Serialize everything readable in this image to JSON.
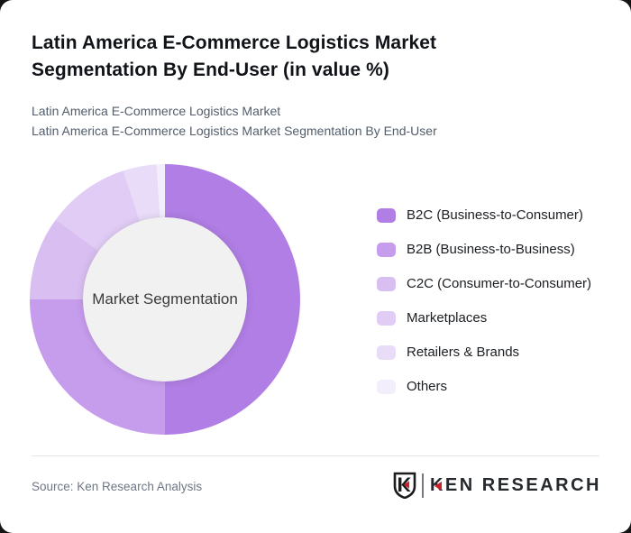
{
  "header": {
    "title": "Latin America E-Commerce Logistics Market Segmentation By End-User (in value %)",
    "subtitle1": "Latin America E-Commerce Logistics Market",
    "subtitle2": "Latin America E-Commerce Logistics Market Segmentation By End-User"
  },
  "chart_data": {
    "type": "pie",
    "variant": "donut",
    "title": "Latin America E-Commerce Logistics Market Segmentation By End-User (in value %)",
    "center_label": "Market Segmentation",
    "labels": [
      "B2C (Business-to-Consumer)",
      "B2B (Business-to-Business)",
      "C2C (Consumer-to-Consumer)",
      "Marketplaces",
      "Retailers & Brands",
      "Others"
    ],
    "values": [
      50,
      25,
      10,
      10,
      4,
      1
    ],
    "unit": "%",
    "colors": [
      "#b07ee4",
      "#c69cec",
      "#d9bff1",
      "#e1ccf5",
      "#e9dcf8",
      "#f3eefb"
    ],
    "start_angle_deg": 0,
    "direction": "clockwise",
    "legend_position": "right",
    "hole_color": "#f1f1f2"
  },
  "footer": {
    "source": "Source: Ken Research Analysis",
    "logo_text": "KEN RESEARCH"
  },
  "colors": {
    "background": "#141414",
    "card": "#ffffff",
    "logo_red": "#c8202a",
    "divider": "#e3e3e6"
  }
}
